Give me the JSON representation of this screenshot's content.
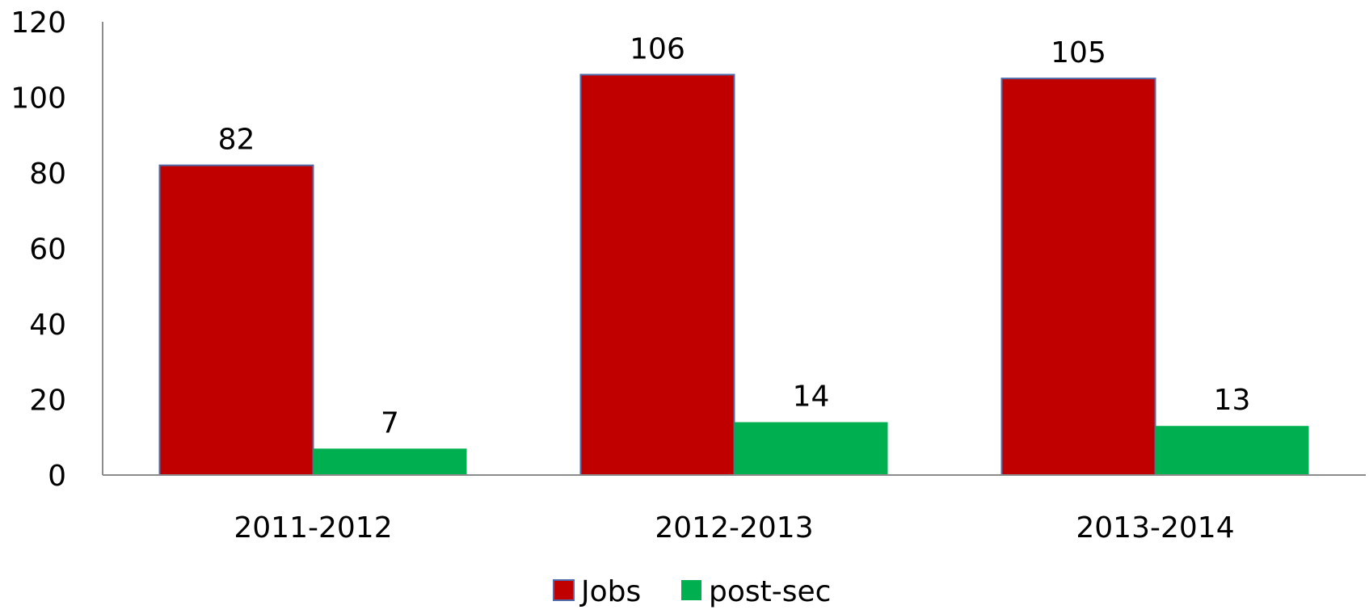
{
  "chart_data": {
    "type": "bar",
    "title": "",
    "xlabel": "",
    "ylabel": "",
    "categories": [
      "2011-2012",
      "2012-2013",
      "2013-2014"
    ],
    "series": [
      {
        "name": "Jobs",
        "values": [
          82,
          106,
          105
        ],
        "color": "#C00000",
        "border": "#4F6BA8"
      },
      {
        "name": "post-sec",
        "values": [
          7,
          14,
          13
        ],
        "color": "#00B050"
      }
    ],
    "ylim": [
      0,
      120
    ],
    "yticks": [
      0,
      20,
      40,
      60,
      80,
      100,
      120
    ],
    "grid": false,
    "legend_position": "bottom",
    "data_labels": true
  }
}
